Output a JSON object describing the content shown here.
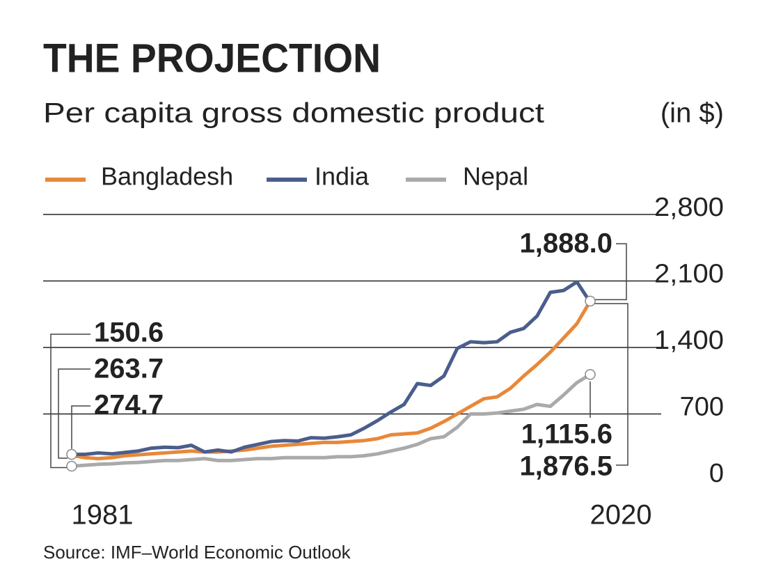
{
  "chart_data": {
    "type": "line",
    "title": "THE PROJECTION",
    "subtitle": "Per capita gross domestic product",
    "unit_label": "(in $)",
    "source": "Source: IMF–World Economic Outlook",
    "x": [
      1981,
      1982,
      1983,
      1984,
      1985,
      1986,
      1987,
      1988,
      1989,
      1990,
      1991,
      1992,
      1993,
      1994,
      1995,
      1996,
      1997,
      1998,
      1999,
      2000,
      2001,
      2002,
      2003,
      2004,
      2005,
      2006,
      2007,
      2008,
      2009,
      2010,
      2011,
      2012,
      2013,
      2014,
      2015,
      2016,
      2017,
      2018,
      2019,
      2020
    ],
    "xlim": [
      1981,
      2020
    ],
    "xticks": [
      1981,
      2020
    ],
    "ylim": [
      0,
      2800
    ],
    "yticks": [
      0,
      {
        "value": 700,
        "label": "700"
      },
      {
        "value": 1400,
        "label": "1,400"
      },
      {
        "value": 2100,
        "label": "2,100"
      },
      {
        "value": 2800,
        "label": "2,800"
      }
    ],
    "grid": true,
    "series": [
      {
        "name": "Bangladesh",
        "color": "#e8883a",
        "values": [
          263.7,
          240,
          230,
          240,
          260,
          270,
          280,
          290,
          300,
          310,
          300,
          300,
          310,
          320,
          340,
          360,
          370,
          380,
          390,
          400,
          400,
          410,
          420,
          440,
          480,
          490,
          500,
          550,
          620,
          700,
          780,
          860,
          880,
          970,
          1100,
          1220,
          1350,
          1500,
          1650,
          1888.0
        ]
      },
      {
        "name": "India",
        "color": "#4a5e8c",
        "values": [
          274.7,
          275,
          290,
          280,
          295,
          310,
          340,
          350,
          345,
          370,
          300,
          320,
          300,
          350,
          380,
          410,
          420,
          415,
          450,
          445,
          460,
          480,
          550,
          630,
          720,
          800,
          1020,
          1000,
          1100,
          1390,
          1460,
          1450,
          1460,
          1560,
          1600,
          1730,
          1980,
          2000,
          2090,
          1876.5
        ]
      },
      {
        "name": "Nepal",
        "color": "#aaaaaa",
        "values": [
          150.6,
          160,
          170,
          175,
          185,
          190,
          200,
          210,
          210,
          220,
          230,
          210,
          210,
          220,
          230,
          230,
          240,
          240,
          240,
          240,
          250,
          250,
          260,
          280,
          310,
          340,
          380,
          440,
          460,
          560,
          700,
          700,
          710,
          730,
          750,
          800,
          780,
          900,
          1030,
          1115.6
        ]
      }
    ],
    "annotations": [
      "150.6",
      "263.7",
      "274.7",
      "1,888.0",
      "1,115.6",
      "1,876.5"
    ]
  }
}
